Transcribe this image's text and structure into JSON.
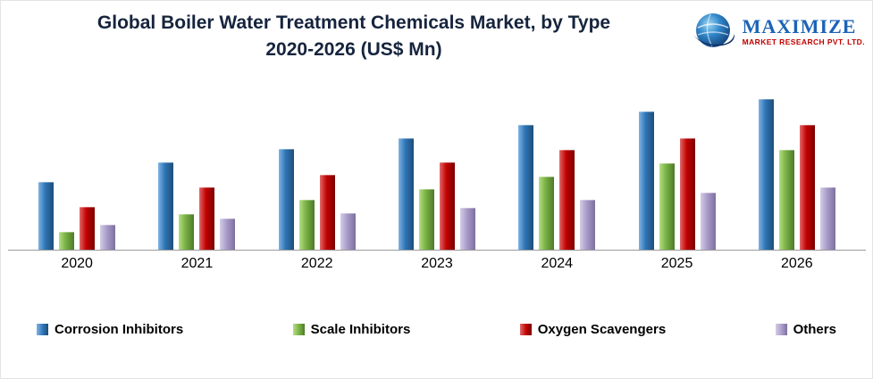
{
  "title": {
    "line1": "Global Boiler Water Treatment Chemicals Market, by Type",
    "line2": "2020-2026  (US$ Mn)"
  },
  "logo": {
    "name": "MAXIMIZE",
    "subtitle": "MARKET RESEARCH PVT. LTD."
  },
  "chart_data": {
    "type": "bar",
    "title": "Global Boiler Water Treatment Chemicals Market, by Type 2020-2026 (US$ Mn)",
    "xlabel": "",
    "ylabel": "US$ Mn",
    "ylim": [
      0,
      180
    ],
    "grid": false,
    "legend_position": "bottom",
    "categories": [
      "2020",
      "2021",
      "2022",
      "2023",
      "2024",
      "2025",
      "2026"
    ],
    "series": [
      {
        "name": "Corrosion Inhibitors",
        "color": "#2E74B5",
        "color_light": "#7FB2E5",
        "color_dark": "#1E4E79",
        "values": [
          75,
          96,
          111,
          123,
          137,
          152,
          165
        ]
      },
      {
        "name": "Scale Inhibitors",
        "color": "#77B043",
        "color_light": "#B5DE84",
        "color_dark": "#4E7A2A",
        "values": [
          20,
          40,
          55,
          67,
          81,
          95,
          110
        ]
      },
      {
        "name": "Oxygen Scavengers",
        "color": "#C00000",
        "color_light": "#E26868",
        "color_dark": "#7B0000",
        "values": [
          48,
          69,
          83,
          96,
          110,
          123,
          137
        ]
      },
      {
        "name": "Others",
        "color": "#A89BC8",
        "color_light": "#D4CCE6",
        "color_dark": "#7E6FA0",
        "values": [
          28,
          35,
          41,
          47,
          55,
          63,
          69
        ]
      }
    ]
  }
}
